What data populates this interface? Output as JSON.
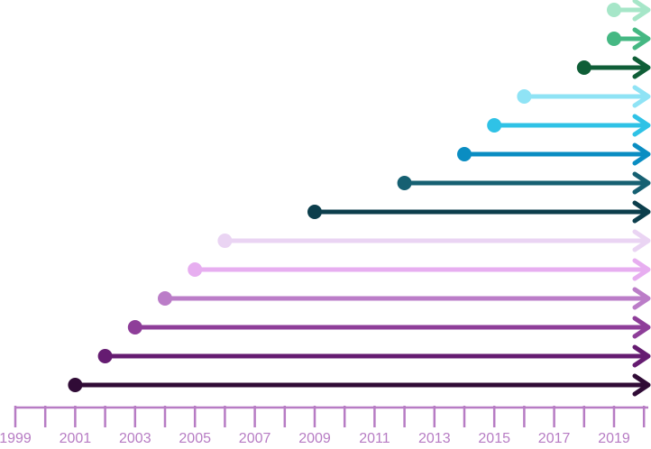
{
  "chart_data": {
    "type": "timeline",
    "title": "",
    "xlabel": "",
    "ylabel": "",
    "x_range": [
      1999,
      2020
    ],
    "axis_color": "#b77cc4",
    "end_year": 2020,
    "tick_years": [
      1999,
      2000,
      2001,
      2002,
      2003,
      2004,
      2005,
      2006,
      2007,
      2008,
      2009,
      2010,
      2011,
      2012,
      2013,
      2014,
      2015,
      2016,
      2017,
      2018,
      2019,
      2020
    ],
    "tick_labels": [
      "1999",
      "2001",
      "2003",
      "2005",
      "2007",
      "2009",
      "2011",
      "2013",
      "2015",
      "2017",
      "2019"
    ],
    "tick_label_years": [
      1999,
      2001,
      2003,
      2005,
      2007,
      2009,
      2011,
      2013,
      2015,
      2017,
      2019
    ],
    "arrows": [
      {
        "start": 2019.0,
        "color": "#a6e6c8"
      },
      {
        "start": 2019.0,
        "color": "#45b883"
      },
      {
        "start": 2018.0,
        "color": "#0f5e37"
      },
      {
        "start": 2016.0,
        "color": "#8fe3f5"
      },
      {
        "start": 2015.0,
        "color": "#2fc2e6"
      },
      {
        "start": 2014.0,
        "color": "#0a8dc2"
      },
      {
        "start": 2012.0,
        "color": "#166072"
      },
      {
        "start": 2009.0,
        "color": "#0c3e4c"
      },
      {
        "start": 2006.0,
        "color": "#ead4f3"
      },
      {
        "start": 2005.0,
        "color": "#e7aef0"
      },
      {
        "start": 2004.0,
        "color": "#bb7dc8"
      },
      {
        "start": 2003.0,
        "color": "#8e3e99"
      },
      {
        "start": 2002.0,
        "color": "#651c71"
      },
      {
        "start": 2001.0,
        "color": "#300b36"
      }
    ]
  }
}
